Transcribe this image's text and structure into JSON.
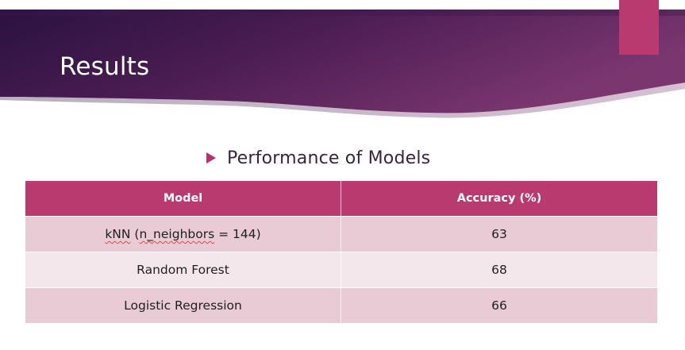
{
  "slide": {
    "title": "Results",
    "bullet": "Performance of Models"
  },
  "colors": {
    "banner_dark": "#2e1442",
    "banner_mid": "#6b2a63",
    "accent": "#b83a6f",
    "row_odd": "#e8cbd5",
    "row_even": "#f4e7eb"
  },
  "table": {
    "headers": [
      "Model",
      "Accuracy  (%)"
    ],
    "rows": [
      {
        "model_part1": "kNN",
        "model_part2": "n_neighbors",
        "model_full_prefix": " (",
        "model_suffix": " = 144)",
        "accuracy": "63"
      },
      {
        "model": "Random Forest",
        "accuracy": "68"
      },
      {
        "model": "Logistic Regression",
        "accuracy": "66"
      }
    ]
  }
}
